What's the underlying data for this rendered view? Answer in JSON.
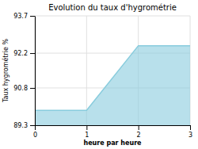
{
  "chart_data": {
    "type": "area",
    "title": "Evolution du taux d'hygrométrie",
    "xlabel": "heure par heure",
    "ylabel": "Taux hygrométrie %",
    "x": [
      0,
      1,
      2,
      3
    ],
    "y": [
      89.9,
      89.9,
      92.5,
      92.5
    ],
    "color": "#88ccdd",
    "xlim": [
      0,
      3
    ],
    "ylim": [
      89.3,
      93.7
    ],
    "xticks": [
      0,
      1,
      2,
      3
    ],
    "yticks": [
      89.3,
      90.8,
      92.2,
      93.7
    ],
    "grid": true
  }
}
